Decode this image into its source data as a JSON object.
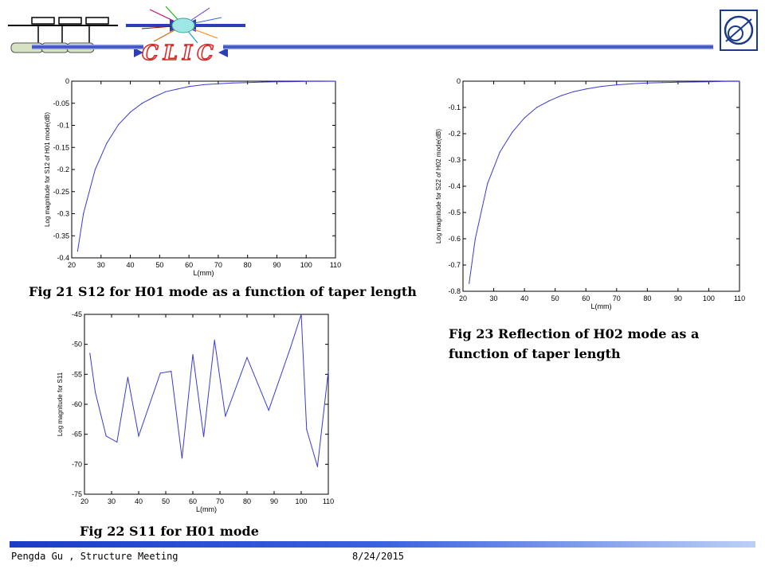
{
  "header": {
    "logo_text": "CLIC",
    "org_logo_text": "CERN"
  },
  "captions": {
    "fig21": "Fig 21  S12 for H01 mode as a function of taper length",
    "fig22": "Fig 22  S11 for H01 mode",
    "fig23_line1": "Fig 23 Reflection of H02 mode as a",
    "fig23_line2": "function of taper length"
  },
  "footer": {
    "author": "Pengda Gu , Structure Meeting",
    "date": "8/24/2015"
  },
  "chart_data": [
    {
      "type": "line",
      "xlabel": "L(mm)",
      "ylabel": "Log magnitude for S12 of H01 mode(dB)",
      "xlim": [
        20,
        110
      ],
      "ylim": [
        -0.4,
        0
      ],
      "xticks": [
        20,
        30,
        40,
        50,
        60,
        70,
        80,
        90,
        100,
        110
      ],
      "yticks": [
        0,
        -0.05,
        -0.1,
        -0.15,
        -0.2,
        -0.25,
        -0.3,
        -0.35,
        -0.4
      ],
      "ytick_labels": [
        "0",
        "-0.05",
        "-0.1",
        "-0.15",
        "-0.2",
        "-0.25",
        "-0.3",
        "-0.35",
        "-0.4"
      ],
      "line_color": "#3a3ad8",
      "x": [
        22,
        24,
        28,
        32,
        36,
        40,
        44,
        48,
        52,
        56,
        60,
        65,
        70,
        75,
        80,
        85,
        90,
        95,
        100,
        105,
        110
      ],
      "y": [
        -0.385,
        -0.3,
        -0.2,
        -0.14,
        -0.098,
        -0.07,
        -0.05,
        -0.036,
        -0.024,
        -0.018,
        -0.012,
        -0.008,
        -0.006,
        -0.004,
        -0.003,
        -0.002,
        -0.0015,
        -0.001,
        -0.0006,
        -0.0003,
        -0.0002
      ]
    },
    {
      "type": "line",
      "xlabel": "L(mm)",
      "ylabel": "Log magnitude for S11",
      "xlim": [
        20,
        110
      ],
      "ylim": [
        -75,
        -45
      ],
      "xticks": [
        20,
        30,
        40,
        50,
        60,
        70,
        80,
        90,
        100,
        110
      ],
      "yticks": [
        -45,
        -50,
        -55,
        -60,
        -65,
        -70,
        -75
      ],
      "ytick_labels": [
        "-45",
        "-50",
        "-55",
        "-60",
        "-65",
        "-70",
        "-75"
      ],
      "line_color": "#3a3ad8",
      "x": [
        22,
        24,
        28,
        32,
        36,
        40,
        48,
        52,
        56,
        60,
        64,
        68,
        72,
        80,
        88,
        96,
        100,
        102,
        106,
        110
      ],
      "y": [
        -51.5,
        -58,
        -65.3,
        -66.3,
        -55.5,
        -65.3,
        -54.8,
        -54.5,
        -69,
        -51.7,
        -65.4,
        -49.3,
        -62,
        -52.2,
        -61,
        -50.6,
        -45,
        -64.2,
        -70.4,
        -54.5
      ]
    },
    {
      "type": "line",
      "xlabel": "L(mm)",
      "ylabel": "Log magnitude for S22 of H02 mode(dB)",
      "xlim": [
        20,
        110
      ],
      "ylim": [
        -0.8,
        0
      ],
      "xticks": [
        20,
        30,
        40,
        50,
        60,
        70,
        80,
        90,
        100,
        110
      ],
      "yticks": [
        0,
        -0.1,
        -0.2,
        -0.3,
        -0.4,
        -0.5,
        -0.6,
        -0.7,
        -0.8
      ],
      "ytick_labels": [
        "0",
        "-0.1",
        "-0.2",
        "-0.3",
        "-0.4",
        "-0.5",
        "-0.6",
        "-0.7",
        "-0.8"
      ],
      "line_color": "#3a3ad8",
      "x": [
        22,
        24,
        28,
        32,
        36,
        40,
        44,
        48,
        52,
        56,
        60,
        65,
        70,
        75,
        80,
        85,
        90,
        95,
        100,
        105,
        110
      ],
      "y": [
        -0.77,
        -0.6,
        -0.39,
        -0.27,
        -0.195,
        -0.14,
        -0.1,
        -0.075,
        -0.055,
        -0.04,
        -0.03,
        -0.02,
        -0.014,
        -0.01,
        -0.007,
        -0.005,
        -0.004,
        -0.003,
        -0.002,
        -0.001,
        -0.0008
      ]
    }
  ]
}
